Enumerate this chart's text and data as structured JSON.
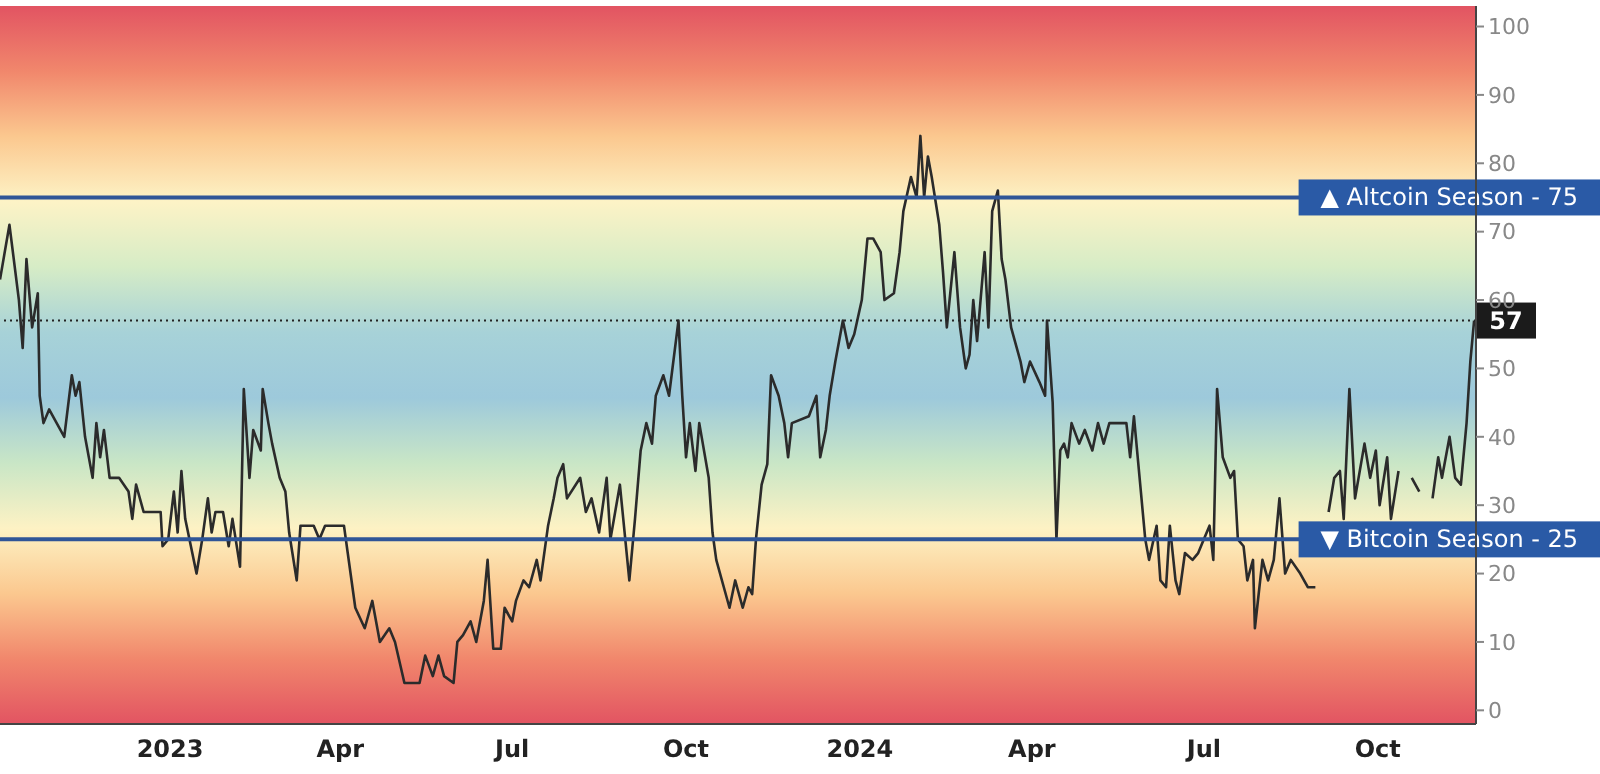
{
  "chart_data": {
    "type": "line",
    "xlim": [
      "2022-10-03",
      "2024-11-22"
    ],
    "ylim": [
      -2,
      103
    ],
    "xticks": [
      {
        "value": "2023-01-01",
        "label": "2023"
      },
      {
        "value": "2023-04-01",
        "label": "Apr"
      },
      {
        "value": "2023-07-01",
        "label": "Jul"
      },
      {
        "value": "2023-10-01",
        "label": "Oct"
      },
      {
        "value": "2024-01-01",
        "label": "2024"
      },
      {
        "value": "2024-04-01",
        "label": "Apr"
      },
      {
        "value": "2024-07-01",
        "label": "Jul"
      },
      {
        "value": "2024-10-01",
        "label": "Oct"
      }
    ],
    "yticks": [
      0,
      10,
      20,
      30,
      40,
      50,
      60,
      70,
      80,
      90,
      100
    ],
    "grid": false,
    "legend": false,
    "marker": "none",
    "line_style": "solid",
    "x": [
      "2022-10-03",
      "2022-10-08",
      "2022-10-13",
      "2022-10-15",
      "2022-10-17",
      "2022-10-20",
      "2022-10-23",
      "2022-10-24",
      "2022-10-26",
      "2022-10-29",
      "2022-11-02",
      "2022-11-06",
      "2022-11-10",
      "2022-11-12",
      "2022-11-14",
      "2022-11-17",
      "2022-11-21",
      "2022-11-23",
      "2022-11-25",
      "2022-11-27",
      "2022-11-30",
      "2022-12-05",
      "2022-12-10",
      "2022-12-12",
      "2022-12-14",
      "2022-12-18",
      "2022-12-27",
      "2022-12-28",
      "2022-12-31",
      "2023-01-03",
      "2023-01-05",
      "2023-01-07",
      "2023-01-09",
      "2023-01-15",
      "2023-01-18",
      "2023-01-21",
      "2023-01-23",
      "2023-01-25",
      "2023-01-29",
      "2023-02-01",
      "2023-02-03",
      "2023-02-07",
      "2023-02-09",
      "2023-02-12",
      "2023-02-14",
      "2023-02-18",
      "2023-02-19",
      "2023-02-22",
      "2023-02-24",
      "2023-02-28",
      "2023-03-03",
      "2023-03-05",
      "2023-03-09",
      "2023-03-11",
      "2023-03-14",
      "2023-03-18",
      "2023-03-21",
      "2023-03-24",
      "2023-04-03",
      "2023-04-05",
      "2023-04-09",
      "2023-04-14",
      "2023-04-18",
      "2023-04-22",
      "2023-04-27",
      "2023-04-30",
      "2023-05-05",
      "2023-05-13",
      "2023-05-16",
      "2023-05-20",
      "2023-05-23",
      "2023-05-26",
      "2023-05-31",
      "2023-06-02",
      "2023-06-05",
      "2023-06-09",
      "2023-06-12",
      "2023-06-16",
      "2023-06-18",
      "2023-06-21",
      "2023-06-25",
      "2023-06-27",
      "2023-07-01",
      "2023-07-03",
      "2023-07-07",
      "2023-07-10",
      "2023-07-14",
      "2023-07-16",
      "2023-07-20",
      "2023-07-23",
      "2023-07-25",
      "2023-07-28",
      "2023-07-30",
      "2023-08-06",
      "2023-08-09",
      "2023-08-12",
      "2023-08-16",
      "2023-08-20",
      "2023-08-22",
      "2023-08-27",
      "2023-09-01",
      "2023-09-04",
      "2023-09-07",
      "2023-09-10",
      "2023-09-13",
      "2023-09-15",
      "2023-09-19",
      "2023-09-22",
      "2023-09-27",
      "2023-09-29",
      "2023-10-01",
      "2023-10-03",
      "2023-10-06",
      "2023-10-08",
      "2023-10-13",
      "2023-10-15",
      "2023-10-17",
      "2023-10-21",
      "2023-10-24",
      "2023-10-27",
      "2023-10-31",
      "2023-11-03",
      "2023-11-05",
      "2023-11-07",
      "2023-11-10",
      "2023-11-13",
      "2023-11-15",
      "2023-11-19",
      "2023-11-22",
      "2023-11-24",
      "2023-11-26",
      "2023-12-05",
      "2023-12-09",
      "2023-12-11",
      "2023-12-14",
      "2023-12-16",
      "2023-12-19",
      "2023-12-23",
      "2023-12-26",
      "2023-12-29",
      "2024-01-02",
      "2024-01-05",
      "2024-01-08",
      "2024-01-12",
      "2024-01-14",
      "2024-01-19",
      "2024-01-22",
      "2024-01-24",
      "2024-01-28",
      "2024-01-31",
      "2024-02-02",
      "2024-02-04",
      "2024-02-06",
      "2024-02-08",
      "2024-02-12",
      "2024-02-14",
      "2024-02-16",
      "2024-02-20",
      "2024-02-23",
      "2024-02-26",
      "2024-02-28",
      "2024-03-01",
      "2024-03-03",
      "2024-03-07",
      "2024-03-09",
      "2024-03-11",
      "2024-03-14",
      "2024-03-16",
      "2024-03-18",
      "2024-03-21",
      "2024-03-26",
      "2024-03-28",
      "2024-03-31",
      "2024-04-05",
      "2024-04-08",
      "2024-04-09",
      "2024-04-12",
      "2024-04-14",
      "2024-04-16",
      "2024-04-18",
      "2024-04-20",
      "2024-04-22",
      "2024-04-26",
      "2024-04-29",
      "2024-05-03",
      "2024-05-06",
      "2024-05-09",
      "2024-05-12",
      "2024-05-21",
      "2024-05-23",
      "2024-05-25",
      "2024-05-28",
      "2024-05-31",
      "2024-06-02",
      "2024-06-06",
      "2024-06-08",
      "2024-06-11",
      "2024-06-13",
      "2024-06-16",
      "2024-06-18",
      "2024-06-21",
      "2024-06-25",
      "2024-06-28",
      "2024-07-01",
      "2024-07-04",
      "2024-07-06",
      "2024-07-08",
      "2024-07-11",
      "2024-07-15",
      "2024-07-17",
      "2024-07-19",
      "2024-07-22",
      "2024-07-24",
      "2024-07-27",
      "2024-07-28",
      "2024-08-01",
      "2024-08-04",
      "2024-08-07",
      "2024-08-10",
      "2024-08-13",
      "2024-08-16",
      "2024-08-21",
      "2024-08-25",
      "2024-08-29",
      "2024-09-01",
      "2024-09-05",
      "2024-09-08",
      "2024-09-11",
      "2024-09-13",
      "2024-09-16",
      "2024-09-19",
      "2024-09-24",
      "2024-09-27",
      "2024-09-30",
      "2024-10-02",
      "2024-10-06",
      "2024-10-08",
      "2024-10-12",
      "2024-10-13",
      "2024-10-16",
      "2024-10-19",
      "2024-10-23",
      "2024-10-26",
      "2024-10-30",
      "2024-11-02",
      "2024-11-04",
      "2024-11-08",
      "2024-11-11",
      "2024-11-14",
      "2024-11-17",
      "2024-11-19",
      "2024-11-21"
    ],
    "series": [
      {
        "color": "#2b2b2b",
        "values": [
          63,
          71,
          60,
          53,
          66,
          56,
          61,
          46,
          42,
          44,
          42,
          40,
          49,
          46,
          48,
          40,
          34,
          42,
          37,
          41,
          34,
          34,
          32,
          28,
          33,
          29,
          29,
          24,
          25,
          32,
          26,
          35,
          28,
          20,
          25,
          31,
          26,
          29,
          29,
          24,
          28,
          21,
          47,
          34,
          41,
          38,
          47,
          42,
          39,
          34,
          32,
          26,
          19,
          27,
          27,
          27,
          25,
          27,
          27,
          23,
          15,
          12,
          16,
          10,
          12,
          10,
          4,
          4,
          8,
          5,
          8,
          5,
          4,
          10,
          11,
          13,
          10,
          16,
          22,
          9,
          9,
          15,
          13,
          16,
          19,
          18,
          22,
          19,
          27,
          31,
          34,
          36,
          31,
          34,
          29,
          31,
          26,
          34,
          25,
          33,
          19,
          28,
          38,
          42,
          39,
          46,
          49,
          46,
          57,
          46,
          37,
          42,
          35,
          42,
          34,
          26,
          22,
          18,
          15,
          19,
          15,
          18,
          17,
          25,
          33,
          36,
          49,
          46,
          42,
          37,
          42,
          43,
          46,
          37,
          41,
          46,
          51,
          57,
          53,
          55,
          60,
          69,
          69,
          67,
          60,
          61,
          67,
          73,
          78,
          75,
          84,
          75,
          81,
          78,
          71,
          64,
          56,
          67,
          56,
          50,
          52,
          60,
          54,
          67,
          56,
          73,
          76,
          66,
          63,
          56,
          51,
          48,
          51,
          48,
          46,
          57,
          45,
          25,
          38,
          39,
          37,
          42,
          39,
          41,
          38,
          42,
          39,
          42,
          42,
          37,
          43,
          34,
          25,
          22,
          27,
          19,
          18,
          27,
          19,
          17,
          23,
          22,
          23,
          25,
          27,
          22,
          47,
          37,
          34,
          35,
          25,
          24,
          19,
          22,
          12,
          22,
          19,
          22,
          31,
          20,
          22,
          20,
          18,
          18,
          null,
          29,
          34,
          35,
          28,
          47,
          31,
          39,
          34,
          38,
          30,
          37,
          28,
          35,
          null,
          null,
          34,
          32,
          null,
          31,
          37,
          34,
          40,
          34,
          33,
          42,
          51,
          57
        ]
      }
    ],
    "ref_lines": [
      {
        "axis": "y",
        "value": 75,
        "label": "▲ Altcoin Season - 75",
        "color": "#2f5597",
        "line_style": "solid"
      },
      {
        "axis": "y",
        "value": 25,
        "label": "▼ Bitcoin Season - 25",
        "color": "#2f5597",
        "line_style": "solid"
      },
      {
        "axis": "y",
        "value": 57,
        "label": "57",
        "color": "#222222",
        "line_style": "dotted"
      }
    ]
  }
}
